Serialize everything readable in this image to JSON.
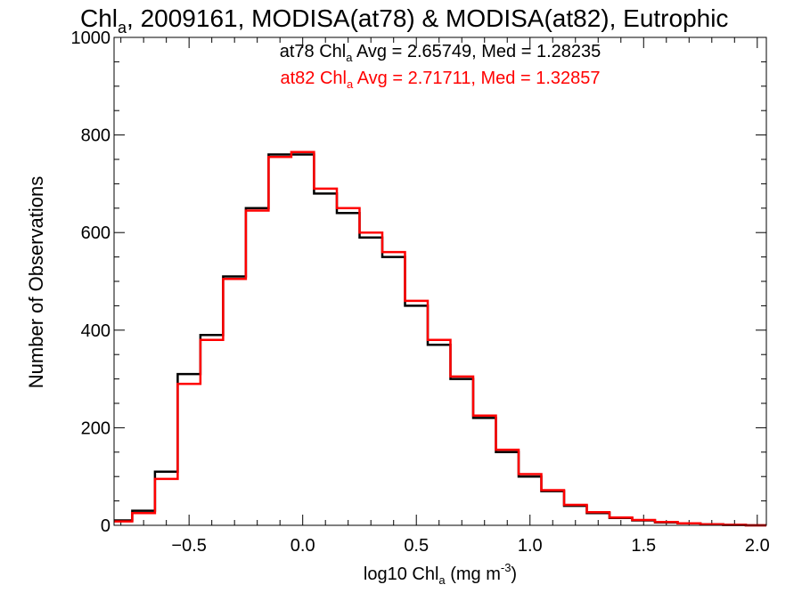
{
  "chart_data": {
    "type": "line",
    "title": {
      "base": "Chl",
      "sub": "a",
      "rest": ", 2009161, MODISA(at78) & MODISA(at82), Eutrophic"
    },
    "xlabel": {
      "pre": "log10 Chl",
      "sub": "a",
      "mid": " (mg m",
      "sup": "-3",
      "post": ")"
    },
    "ylabel": "Number of Observations",
    "xlim": [
      -0.83,
      2.04
    ],
    "ylim": [
      0,
      1000
    ],
    "xticks": [
      -0.5,
      0.0,
      0.5,
      1.0,
      1.5,
      2.0
    ],
    "xtick_labels": [
      "−0.5",
      "0.0",
      "0.5",
      "1.0",
      "1.5",
      "2.0"
    ],
    "yticks": [
      0,
      200,
      400,
      600,
      800,
      1000
    ],
    "ytick_labels": [
      "0",
      "200",
      "400",
      "600",
      "800",
      "1000"
    ],
    "grid": false,
    "legend_placement": "top-center",
    "annotations": [
      {
        "pre": "at78 Chl",
        "sub": "a",
        "post": " Avg = 2.65749, Med = 1.28235",
        "color": "#000000"
      },
      {
        "pre": "at82 Chl",
        "sub": "a",
        "post": " Avg = 2.71711, Med = 1.32857",
        "color": "#ff0000"
      }
    ],
    "x": [
      -0.8,
      -0.7,
      -0.6,
      -0.5,
      -0.4,
      -0.3,
      -0.2,
      -0.1,
      0.0,
      0.1,
      0.2,
      0.3,
      0.4,
      0.5,
      0.6,
      0.7,
      0.8,
      0.9,
      1.0,
      1.1,
      1.2,
      1.3,
      1.4,
      1.5,
      1.6,
      1.7,
      1.8,
      1.9,
      2.0
    ],
    "series": [
      {
        "color": "#000000",
        "values": [
          10,
          30,
          110,
          310,
          390,
          510,
          650,
          760,
          760,
          680,
          640,
          590,
          550,
          450,
          370,
          300,
          220,
          150,
          100,
          70,
          40,
          25,
          15,
          10,
          6,
          4,
          2,
          1,
          0
        ]
      },
      {
        "color": "#ff0000",
        "values": [
          8,
          25,
          95,
          290,
          380,
          505,
          645,
          755,
          765,
          690,
          650,
          600,
          560,
          460,
          380,
          305,
          225,
          155,
          105,
          72,
          42,
          27,
          16,
          11,
          7,
          4,
          2,
          1,
          0
        ]
      }
    ]
  }
}
